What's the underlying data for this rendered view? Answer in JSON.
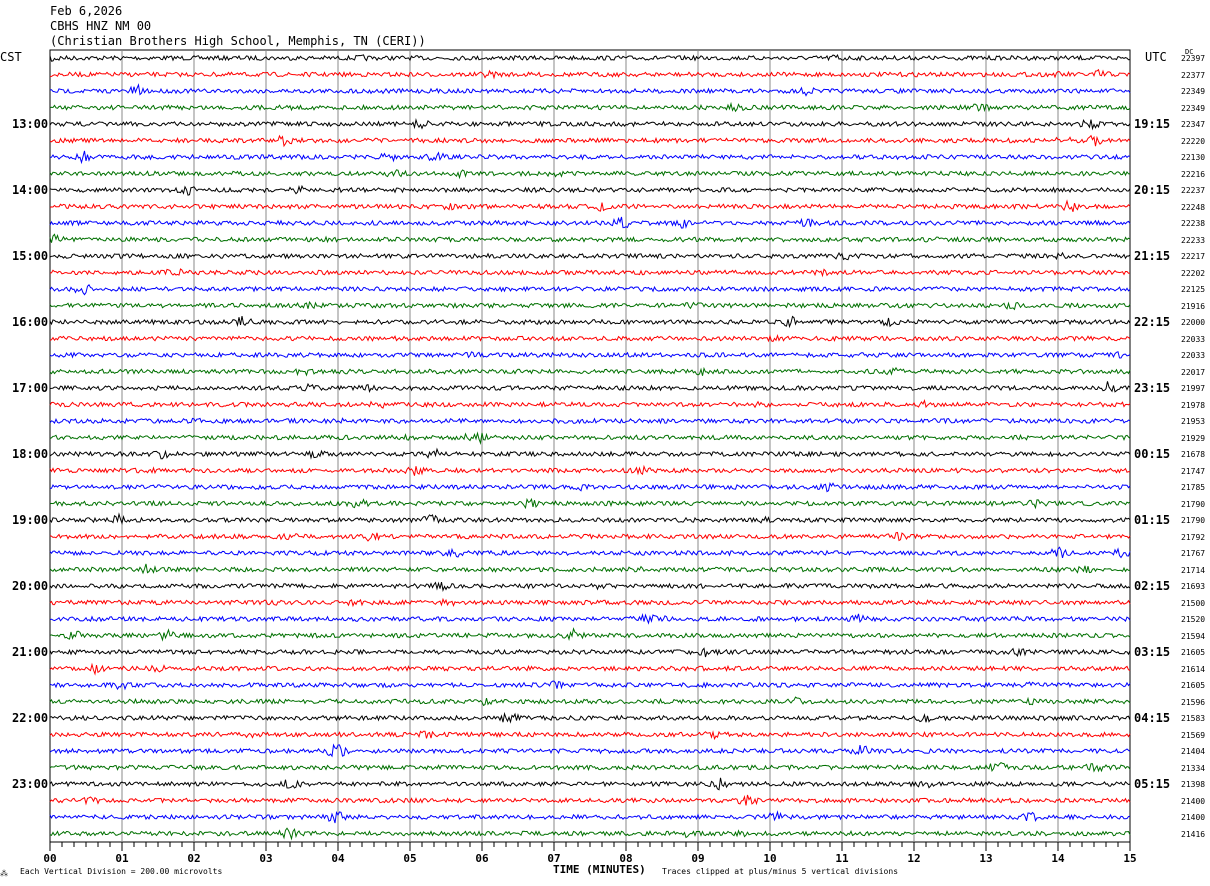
{
  "header": {
    "date": "Feb 6,2026",
    "station": "CBHS HNZ NM 00",
    "location": "(Christian Brothers High School, Memphis, TN (CERI))"
  },
  "left_axis_title": "CST",
  "right_axis_title": "UTC",
  "dc_title": "DC",
  "footer": {
    "scale": "Each Vertical Division =  200.00 microvolts",
    "xlabel": "TIME (MINUTES)",
    "clip_note": "Traces clipped at plus/minus 5 vertical divisions"
  },
  "chart_data": {
    "type": "line",
    "title": "Feb 6,2026 CBHS HNZ NM 00",
    "xlabel": "TIME (MINUTES)",
    "xlim": [
      0,
      15
    ],
    "x_ticks": [
      "00",
      "01",
      "02",
      "03",
      "04",
      "05",
      "06",
      "07",
      "08",
      "09",
      "10",
      "11",
      "12",
      "13",
      "14",
      "15"
    ],
    "rows_per_hour": 4,
    "trace_colors": [
      "#000000",
      "#ff0000",
      "#0000ff",
      "#007000"
    ],
    "cst_labels": [
      "13:00",
      "14:00",
      "15:00",
      "16:00",
      "17:00",
      "18:00",
      "19:00",
      "20:00",
      "21:00",
      "22:00",
      "23:00"
    ],
    "utc_labels": [
      "19:15",
      "20:15",
      "21:15",
      "22:15",
      "23:15",
      "00:15",
      "01:15",
      "02:15",
      "03:15",
      "04:15",
      "05:15"
    ],
    "dc_offsets": [
      22397,
      22377,
      22349,
      22349,
      22347,
      22220,
      22130,
      22216,
      22237,
      22248,
      22238,
      22233,
      22217,
      22202,
      22125,
      21916,
      22000,
      22033,
      22033,
      22017,
      21997,
      21978,
      21953,
      21929,
      21678,
      21747,
      21785,
      21790,
      21790,
      21792,
      21767,
      21714,
      21693,
      21500,
      21520,
      21594,
      21605,
      21614,
      21605,
      21596,
      21583,
      21569,
      21404,
      21334,
      21398,
      21400,
      21400,
      21416
    ],
    "grid": true
  }
}
